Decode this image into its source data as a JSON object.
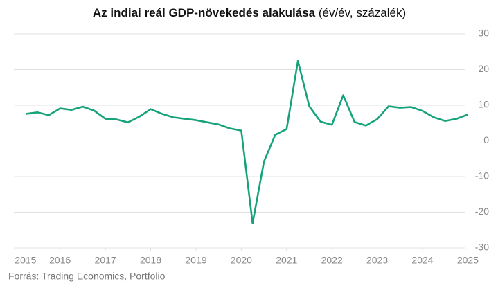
{
  "chart_data": {
    "type": "line",
    "title": "Az indiai reál GDP-növekedés alakulása",
    "subtitle": "(év/év, százalék)",
    "source": "Forrás: Trading Economics, Portfolio",
    "x": [
      2015.25,
      2015.5,
      2015.75,
      2016.0,
      2016.25,
      2016.5,
      2016.75,
      2017.0,
      2017.25,
      2017.5,
      2017.75,
      2018.0,
      2018.25,
      2018.5,
      2018.75,
      2019.0,
      2019.25,
      2019.5,
      2019.75,
      2020.0,
      2020.25,
      2020.5,
      2020.75,
      2021.0,
      2021.25,
      2021.5,
      2021.75,
      2022.0,
      2022.25,
      2022.5,
      2022.75,
      2023.0,
      2023.25,
      2023.5,
      2023.75,
      2024.0,
      2024.25,
      2024.5,
      2024.75,
      2025.0
    ],
    "series": [
      {
        "name": "GDP",
        "color": "#16a37b",
        "values": [
          7.6,
          8.0,
          7.2,
          9.1,
          8.7,
          9.6,
          8.5,
          6.2,
          6.0,
          5.2,
          6.8,
          8.9,
          7.6,
          6.6,
          6.2,
          5.8,
          5.2,
          4.6,
          3.5,
          2.9,
          -23.1,
          -5.8,
          1.7,
          3.3,
          22.4,
          9.7,
          5.4,
          4.5,
          12.8,
          5.3,
          4.3,
          6.1,
          9.7,
          9.3,
          9.5,
          8.4,
          6.6,
          5.6,
          6.2,
          7.4
        ]
      }
    ],
    "xlim": [
      2014.98,
      2025.07
    ],
    "xticks": [
      2015,
      2016,
      2017,
      2018,
      2019,
      2020,
      2021,
      2022,
      2023,
      2024,
      2025
    ],
    "ylim": [
      -30,
      30
    ],
    "yticks": [
      -30,
      -20,
      -10,
      0,
      10,
      20,
      30
    ],
    "grid": true
  }
}
